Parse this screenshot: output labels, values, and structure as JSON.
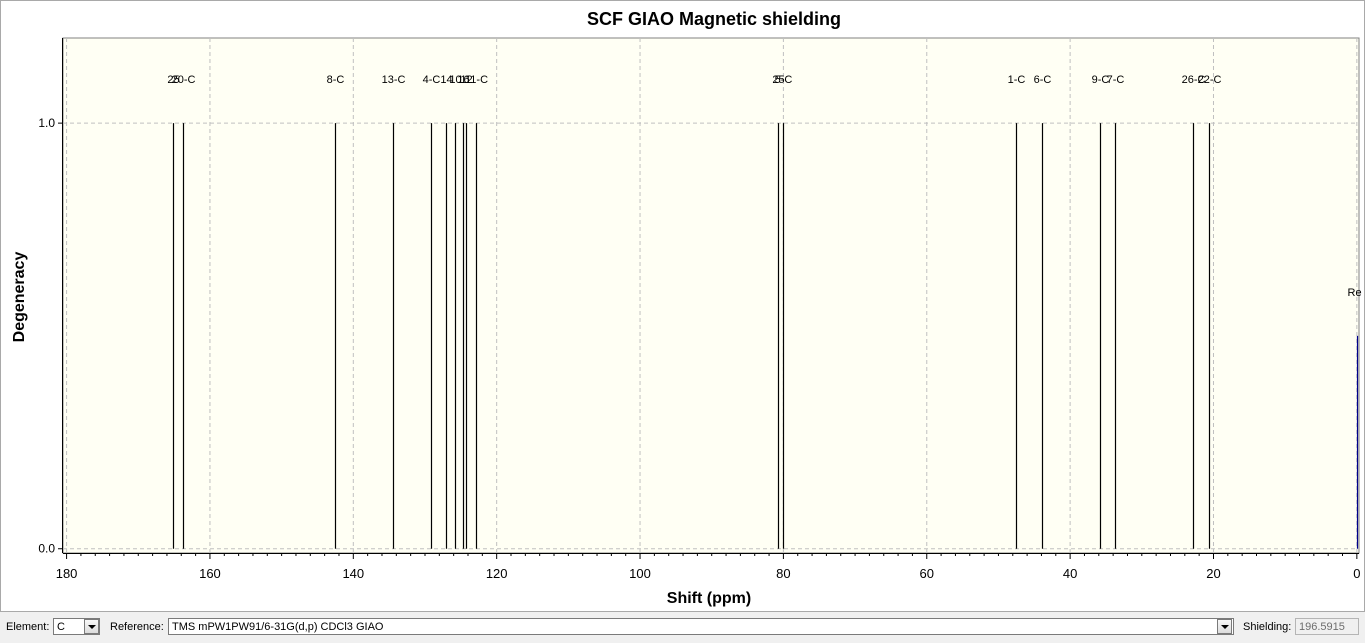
{
  "chart_data": {
    "type": "bar",
    "title": "SCF GIAO Magnetic shielding",
    "xlabel": "Shift (ppm)",
    "ylabel": "Degeneracy",
    "xlim": [
      180.5,
      -0.3
    ],
    "ylim": [
      -0.01,
      1.2
    ],
    "x_ticks": [
      180,
      160,
      140,
      120,
      100,
      80,
      60,
      40,
      20,
      0
    ],
    "y_ticks": [
      0.0,
      1.0
    ],
    "y_tick_labels": [
      "0.0",
      "1.0"
    ],
    "grid": true,
    "peaks": [
      {
        "x": 165.1,
        "value": 1.0,
        "label": "25"
      },
      {
        "x": 163.8,
        "value": 1.0,
        "label": "20-C"
      },
      {
        "x": 142.5,
        "value": 1.0,
        "label": "8-C"
      },
      {
        "x": 134.5,
        "value": 1.0,
        "label": "13-C"
      },
      {
        "x": 129.1,
        "value": 1.0,
        "label": "4-C"
      },
      {
        "x": 127.0,
        "value": 1.0,
        "label": "14"
      },
      {
        "x": 125.8,
        "value": 1.0,
        "label": "10"
      },
      {
        "x": 124.7,
        "value": 1.0,
        "label": "16"
      },
      {
        "x": 124.3,
        "value": 1.0,
        "label": "12"
      },
      {
        "x": 122.9,
        "value": 1.0,
        "label": "11-C"
      },
      {
        "x": 80.8,
        "value": 1.0,
        "label": "25"
      },
      {
        "x": 80.0,
        "value": 1.0,
        "label": "5-C"
      },
      {
        "x": 47.5,
        "value": 1.0,
        "label": "1-C"
      },
      {
        "x": 43.9,
        "value": 1.0,
        "label": "6-C"
      },
      {
        "x": 35.9,
        "value": 1.0,
        "label": "9-C"
      },
      {
        "x": 33.8,
        "value": 1.0,
        "label": "7-C"
      },
      {
        "x": 22.8,
        "value": 1.0,
        "label": "26-C"
      },
      {
        "x": 20.6,
        "value": 1.0,
        "label": "22-C"
      },
      {
        "x": 0.0,
        "value": 0.5,
        "label": "Re"
      }
    ]
  },
  "colors": {
    "plot_bg": "#fffff4",
    "peak": "#000000",
    "reference_peak": "#00008b",
    "grid": "#c0c0c0"
  },
  "controls": {
    "element_label": "Element:",
    "element_value": "C",
    "reference_label": "Reference:",
    "reference_value": "TMS mPW1PW91/6-31G(d,p) CDCl3 GIAO",
    "shielding_label": "Shielding:",
    "shielding_value": "196.5915"
  }
}
